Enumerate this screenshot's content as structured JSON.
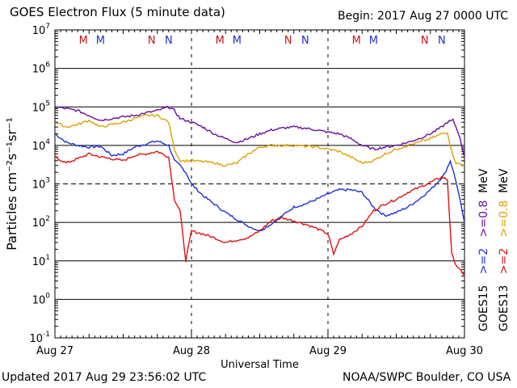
{
  "header": {
    "title": "GOES Electron Flux (5 minute data)",
    "begin": "Begin: 2017 Aug 27 0000 UTC"
  },
  "footer": {
    "updated": "Updated 2017 Aug 29 23:56:02 UTC",
    "credit": "NOAA/SWPC Boulder, CO USA"
  },
  "colors": {
    "goes15_2mev": "#1f2fd6",
    "goes13_2mev": "#e01010",
    "goes15_08mev": "#6a0d9e",
    "goes13_08mev": "#e0a000",
    "marker_M": "#c81414",
    "marker_M2": "#2030c8",
    "marker_N": "#c81414",
    "marker_N2": "#2030c8"
  },
  "chart_data": {
    "type": "line",
    "yscale": "log",
    "ylim": [
      0.1,
      10000000
    ],
    "ylabel": "Particles cm⁻²s⁻¹sr⁻¹",
    "xlabel": "Universal Time",
    "xlim": [
      "2017-08-27T00:00",
      "2017-08-30T00:00"
    ],
    "x_ticks": [
      "Aug 27",
      "Aug 28",
      "Aug 29",
      "Aug 30"
    ],
    "y_ticks": [
      "10^-1",
      "10^0",
      "10^1",
      "10^2",
      "10^3",
      "10^4",
      "10^5",
      "10^6",
      "10^7"
    ],
    "threshold_line": 1000,
    "grid": true,
    "markers": [
      {
        "label": "M",
        "x": "2017-08-27T05:00",
        "color": "#c81414"
      },
      {
        "label": "M",
        "x": "2017-08-27T08:00",
        "color": "#2030c8"
      },
      {
        "label": "N",
        "x": "2017-08-27T17:00",
        "color": "#c81414"
      },
      {
        "label": "N",
        "x": "2017-08-27T20:00",
        "color": "#2030c8"
      },
      {
        "label": "M",
        "x": "2017-08-28T05:00",
        "color": "#c81414"
      },
      {
        "label": "M",
        "x": "2017-08-28T08:00",
        "color": "#2030c8"
      },
      {
        "label": "N",
        "x": "2017-08-28T17:00",
        "color": "#c81414"
      },
      {
        "label": "N",
        "x": "2017-08-28T20:00",
        "color": "#2030c8"
      },
      {
        "label": "M",
        "x": "2017-08-29T05:00",
        "color": "#c81414"
      },
      {
        "label": "M",
        "x": "2017-08-29T08:00",
        "color": "#2030c8"
      },
      {
        "label": "N",
        "x": "2017-08-29T17:00",
        "color": "#c81414"
      },
      {
        "label": "N",
        "x": "2017-08-29T20:00",
        "color": "#2030c8"
      }
    ],
    "legend": {
      "placement": "right",
      "groups": [
        {
          "satellite": "GOES15",
          "entries": [
            {
              "label": ">=2",
              "color": "#1f2fd6"
            },
            {
              "label": ">=0.8",
              "color": "#6a0d9e"
            }
          ],
          "unit": "MeV"
        },
        {
          "satellite": "GOES13",
          "entries": [
            {
              "label": ">=2",
              "color": "#e01010"
            },
            {
              "label": ">=0.8",
              "color": "#e0a000"
            }
          ],
          "unit": "MeV"
        }
      ]
    },
    "series": [
      {
        "name": "GOES15 >=2 MeV",
        "color": "#1f2fd6",
        "x": [
          "2017-08-27T00:00",
          "2017-08-27T02:00",
          "2017-08-27T04:00",
          "2017-08-27T06:00",
          "2017-08-27T08:00",
          "2017-08-27T10:00",
          "2017-08-27T12:00",
          "2017-08-27T14:00",
          "2017-08-27T16:00",
          "2017-08-27T18:00",
          "2017-08-27T20:00",
          "2017-08-27T21:00",
          "2017-08-27T22:00",
          "2017-08-27T23:00",
          "2017-08-28T00:00",
          "2017-08-28T02:00",
          "2017-08-28T04:00",
          "2017-08-28T06:00",
          "2017-08-28T08:00",
          "2017-08-28T10:00",
          "2017-08-28T12:00",
          "2017-08-28T14:00",
          "2017-08-28T16:00",
          "2017-08-28T18:00",
          "2017-08-28T20:00",
          "2017-08-28T22:00",
          "2017-08-29T00:00",
          "2017-08-29T02:00",
          "2017-08-29T04:00",
          "2017-08-29T06:00",
          "2017-08-29T08:00",
          "2017-08-29T10:00",
          "2017-08-29T12:00",
          "2017-08-29T14:00",
          "2017-08-29T16:00",
          "2017-08-29T18:00",
          "2017-08-29T19:30",
          "2017-08-29T20:30",
          "2017-08-29T21:30",
          "2017-08-29T22:30",
          "2017-08-30T00:00"
        ],
        "values": [
          20000,
          12000,
          10000,
          9000,
          9500,
          5500,
          6000,
          9000,
          11000,
          13000,
          10000,
          4000,
          3000,
          2000,
          1000,
          500,
          300,
          180,
          120,
          80,
          60,
          90,
          150,
          250,
          300,
          400,
          550,
          700,
          700,
          600,
          250,
          150,
          180,
          250,
          400,
          700,
          1200,
          1800,
          4000,
          1200,
          100
        ]
      },
      {
        "name": "GOES13 >=2 MeV",
        "color": "#e01010",
        "x": [
          "2017-08-27T00:00",
          "2017-08-27T02:00",
          "2017-08-27T04:00",
          "2017-08-27T06:00",
          "2017-08-27T08:00",
          "2017-08-27T10:00",
          "2017-08-27T12:00",
          "2017-08-27T14:00",
          "2017-08-27T16:00",
          "2017-08-27T18:00",
          "2017-08-27T20:00",
          "2017-08-27T21:00",
          "2017-08-27T22:00",
          "2017-08-27T23:00",
          "2017-08-28T00:00",
          "2017-08-28T02:00",
          "2017-08-28T04:00",
          "2017-08-28T06:00",
          "2017-08-28T08:00",
          "2017-08-28T10:00",
          "2017-08-28T12:00",
          "2017-08-28T14:00",
          "2017-08-28T16:00",
          "2017-08-28T18:00",
          "2017-08-28T20:00",
          "2017-08-28T22:00",
          "2017-08-29T00:00",
          "2017-08-29T01:00",
          "2017-08-29T02:00",
          "2017-08-29T04:00",
          "2017-08-29T06:00",
          "2017-08-29T08:00",
          "2017-08-29T10:00",
          "2017-08-29T12:00",
          "2017-08-29T14:00",
          "2017-08-29T16:00",
          "2017-08-29T18:00",
          "2017-08-29T20:00",
          "2017-08-29T21:00",
          "2017-08-29T21:45",
          "2017-08-29T22:30",
          "2017-08-30T00:00"
        ],
        "values": [
          5000,
          3500,
          4500,
          6000,
          5000,
          4500,
          4000,
          5500,
          6000,
          7000,
          5000,
          400,
          200,
          10,
          60,
          50,
          40,
          30,
          35,
          40,
          60,
          110,
          130,
          110,
          90,
          70,
          50,
          15,
          35,
          50,
          80,
          200,
          300,
          400,
          600,
          800,
          1100,
          1500,
          1300,
          15,
          8,
          4
        ]
      },
      {
        "name": "GOES15 >=0.8 MeV",
        "color": "#6a0d9e",
        "x": [
          "2017-08-27T00:00",
          "2017-08-27T02:00",
          "2017-08-27T04:00",
          "2017-08-27T06:00",
          "2017-08-27T08:00",
          "2017-08-27T10:00",
          "2017-08-27T12:00",
          "2017-08-27T14:00",
          "2017-08-27T16:00",
          "2017-08-27T18:00",
          "2017-08-27T20:00",
          "2017-08-27T21:00",
          "2017-08-27T22:00",
          "2017-08-28T00:00",
          "2017-08-28T02:00",
          "2017-08-28T04:00",
          "2017-08-28T06:00",
          "2017-08-28T08:00",
          "2017-08-28T10:00",
          "2017-08-28T12:00",
          "2017-08-28T14:00",
          "2017-08-28T16:00",
          "2017-08-28T18:00",
          "2017-08-28T20:00",
          "2017-08-28T22:00",
          "2017-08-29T00:00",
          "2017-08-29T02:00",
          "2017-08-29T04:00",
          "2017-08-29T06:00",
          "2017-08-29T08:00",
          "2017-08-29T10:00",
          "2017-08-29T12:00",
          "2017-08-29T14:00",
          "2017-08-29T16:00",
          "2017-08-29T18:00",
          "2017-08-29T20:00",
          "2017-08-29T21:00",
          "2017-08-29T22:00",
          "2017-08-29T23:00",
          "2017-08-30T00:00"
        ],
        "values": [
          100000,
          90000,
          80000,
          60000,
          45000,
          50000,
          55000,
          60000,
          70000,
          80000,
          100000,
          80000,
          50000,
          40000,
          30000,
          20000,
          15000,
          12000,
          15000,
          20000,
          25000,
          28000,
          30000,
          28000,
          25000,
          22000,
          20000,
          15000,
          10000,
          8000,
          9000,
          10000,
          12000,
          15000,
          20000,
          30000,
          40000,
          45000,
          20000,
          5000
        ]
      },
      {
        "name": "GOES13 >=0.8 MeV",
        "color": "#e0a000",
        "x": [
          "2017-08-27T00:00",
          "2017-08-27T02:00",
          "2017-08-27T04:00",
          "2017-08-27T06:00",
          "2017-08-27T08:00",
          "2017-08-27T10:00",
          "2017-08-27T12:00",
          "2017-08-27T14:00",
          "2017-08-27T16:00",
          "2017-08-27T18:00",
          "2017-08-27T20:00",
          "2017-08-27T21:00",
          "2017-08-27T22:00",
          "2017-08-28T00:00",
          "2017-08-28T02:00",
          "2017-08-28T04:00",
          "2017-08-28T06:00",
          "2017-08-28T08:00",
          "2017-08-28T10:00",
          "2017-08-28T12:00",
          "2017-08-28T14:00",
          "2017-08-28T16:00",
          "2017-08-28T18:00",
          "2017-08-28T20:00",
          "2017-08-28T22:00",
          "2017-08-29T00:00",
          "2017-08-29T02:00",
          "2017-08-29T04:00",
          "2017-08-29T06:00",
          "2017-08-29T08:00",
          "2017-08-29T10:00",
          "2017-08-29T12:00",
          "2017-08-29T14:00",
          "2017-08-29T16:00",
          "2017-08-29T18:00",
          "2017-08-29T20:00",
          "2017-08-29T21:00",
          "2017-08-29T21:45",
          "2017-08-29T22:30",
          "2017-08-30T00:00"
        ],
        "values": [
          40000,
          30000,
          35000,
          45000,
          30000,
          35000,
          40000,
          50000,
          60000,
          60000,
          40000,
          8000,
          4000,
          4000,
          3800,
          3500,
          3000,
          3500,
          6000,
          9000,
          10000,
          10000,
          10000,
          9500,
          9000,
          8000,
          7000,
          5000,
          3500,
          4000,
          6000,
          8000,
          10000,
          12000,
          15000,
          20000,
          22000,
          7000,
          3500,
          3000
        ]
      }
    ]
  }
}
